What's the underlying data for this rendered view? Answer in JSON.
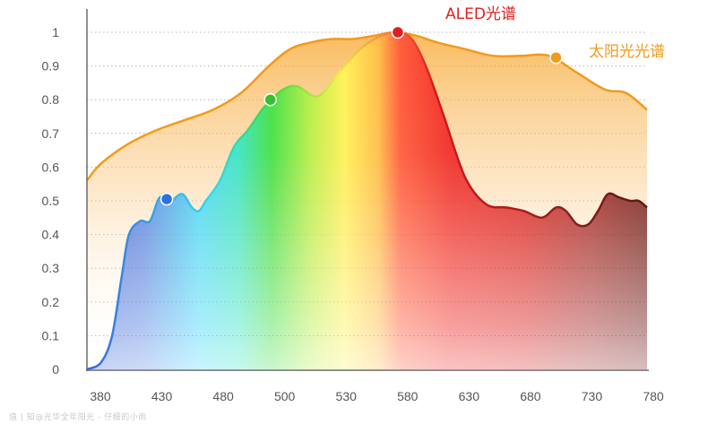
{
  "chart_data": {
    "type": "area",
    "title": "",
    "xlabel": "",
    "ylabel": "",
    "xlim": [
      380,
      780
    ],
    "ylim": [
      0,
      1
    ],
    "grid": "horizontal-dotted",
    "x_ticks": [
      "380",
      "430",
      "480",
      "500",
      "530",
      "580",
      "630",
      "680",
      "730",
      "780"
    ],
    "y_ticks": [
      "0",
      "0.1",
      "0.2",
      "0.3",
      "0.4",
      "0.5",
      "0.6",
      "0.7",
      "0.8",
      "0.9",
      "1"
    ],
    "series": [
      {
        "name": "太阳光光谱",
        "color": "#f29a1b",
        "x": [
          380,
          390,
          410,
          430,
          450,
          470,
          490,
          510,
          525,
          540,
          555,
          570,
          585,
          600,
          615,
          630,
          650,
          670,
          690,
          710,
          730,
          750,
          765,
          780
        ],
        "y": [
          0.56,
          0.61,
          0.67,
          0.71,
          0.74,
          0.77,
          0.82,
          0.9,
          0.95,
          0.97,
          0.98,
          0.98,
          0.99,
          1.0,
          0.99,
          0.97,
          0.95,
          0.93,
          0.93,
          0.93,
          0.88,
          0.83,
          0.82,
          0.77
        ]
      },
      {
        "name": "ALED光谱",
        "color": "#e02020",
        "x": [
          380,
          390,
          398,
          405,
          410,
          418,
          425,
          432,
          440,
          448,
          455,
          460,
          465,
          475,
          485,
          495,
          505,
          512,
          520,
          530,
          545,
          560,
          575,
          590,
          602,
          612,
          622,
          635,
          650,
          665,
          680,
          692,
          705,
          715,
          722,
          730,
          738,
          745,
          752,
          760,
          768,
          774,
          780
        ],
        "y": [
          0.0,
          0.02,
          0.1,
          0.28,
          0.4,
          0.44,
          0.44,
          0.51,
          0.5,
          0.52,
          0.48,
          0.47,
          0.5,
          0.56,
          0.66,
          0.71,
          0.77,
          0.8,
          0.83,
          0.84,
          0.81,
          0.88,
          0.95,
          0.99,
          1.0,
          0.98,
          0.9,
          0.75,
          0.57,
          0.49,
          0.48,
          0.47,
          0.45,
          0.48,
          0.47,
          0.43,
          0.43,
          0.47,
          0.52,
          0.51,
          0.5,
          0.5,
          0.48
        ]
      }
    ],
    "markers": [
      {
        "series": "ALED光谱",
        "x": 437,
        "y": 0.505,
        "color": "#2f6fe3"
      },
      {
        "series": "ALED光谱",
        "x": 511,
        "y": 0.8,
        "color": "#31c22f"
      },
      {
        "series": "ALED光谱",
        "x": 602,
        "y": 1.0,
        "color": "#e01e1e"
      },
      {
        "series": "太阳光光谱",
        "x": 715,
        "y": 0.925,
        "color": "#f29a1b"
      }
    ],
    "legend": [
      {
        "text": "ALED光谱",
        "color": "#e02020",
        "placement": "above-peak"
      },
      {
        "text": "太阳光光谱",
        "color": "#f29a1b",
        "placement": "top-right"
      }
    ]
  },
  "watermark": "值 | 知@光华全年阳光 - 仔细的小雨"
}
